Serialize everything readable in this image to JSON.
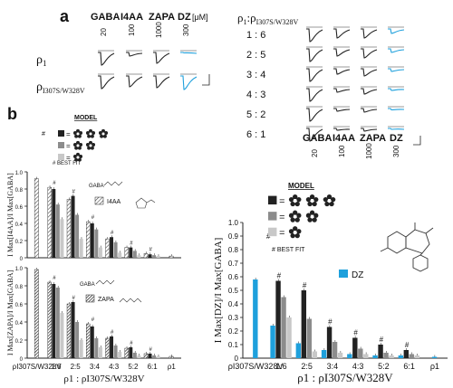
{
  "panel_labels": {
    "a": "a",
    "b": "b"
  },
  "panel_a": {
    "drug_header": [
      "GABA",
      "I4AA",
      "ZAPA",
      "DZ"
    ],
    "conc_row": [
      "20",
      "100",
      "1000",
      "300"
    ],
    "unit": "[μM]",
    "rho1_label": "ρ",
    "rho1_sub": "1",
    "mutant_label": "ρ",
    "mutant_sub": "I307S/W328V",
    "ratio_title_rho": "ρ",
    "ratio_title_sub1": "1",
    "ratio_title_colon": ":ρ",
    "ratio_title_sub2": "I307S/W328V",
    "ratio_drug_header": [
      "GABA",
      "I4AA",
      "ZAPA",
      "DZ"
    ],
    "ratio_conc_row": [
      "20",
      "100",
      "1000",
      "300"
    ],
    "ratios": [
      "1 : 6",
      "2 : 5",
      "3 : 4",
      "4 : 3",
      "5 : 2",
      "6 : 1"
    ]
  },
  "model_legend_left": {
    "title": "MODEL",
    "best_fit": "# BEST FIT",
    "hash": "#"
  },
  "model_legend_right": {
    "title": "MODEL",
    "best_fit": "# BEST FIT",
    "hash": "#"
  },
  "colors": {
    "black": "#222222",
    "gray": "#8c8c8c",
    "light": "#c8c8c8",
    "dz": "#1ea0dc",
    "hatch": "#555555"
  },
  "chart_data": [
    {
      "type": "bar",
      "title": "",
      "ylabel": "I Max[I4AA]/I Max[GABA]",
      "ylim": [
        0,
        1.0
      ],
      "yticks": [
        "0",
        "0.2",
        "0.4",
        "0.6",
        "0.8",
        "1.0"
      ],
      "legend": "I4AA",
      "legend_text": "GABA",
      "categories": [
        "ρI307S/W328V",
        "1:6",
        "2:5",
        "3:4",
        "4:3",
        "5:2",
        "6:1",
        "ρ1"
      ],
      "series": [
        {
          "name": "I4AA",
          "values": [
            0.92,
            0.82,
            0.68,
            0.42,
            0.22,
            0.12,
            0.05,
            0.02
          ]
        },
        {
          "values": [
            null,
            0.8,
            0.72,
            0.4,
            0.24,
            0.12,
            0.04,
            null
          ]
        },
        {
          "values": [
            null,
            0.62,
            0.5,
            0.33,
            0.18,
            0.08,
            0.03,
            null
          ]
        },
        {
          "values": [
            null,
            0.45,
            0.22,
            0.12,
            0.06,
            0.03,
            0.02,
            null
          ]
        }
      ],
      "best_fit_marks": [
        "1:6",
        "2:5",
        "3:4",
        "4:3",
        "5:2",
        "6:1"
      ]
    },
    {
      "type": "bar",
      "title": "",
      "ylabel": "I Max[ZAPA]/I Max[GABA]",
      "ylim": [
        0,
        1.0
      ],
      "yticks": [
        "0",
        "0.2",
        "0.4",
        "0.6",
        "0.8",
        "1.0"
      ],
      "legend": "ZAPA",
      "legend_text": "GABA",
      "categories": [
        "ρI307S/W328V",
        "1:6",
        "2:5",
        "3:4",
        "4:3",
        "5:2",
        "6:1",
        "ρ1"
      ],
      "series": [
        {
          "name": "ZAPA",
          "values": [
            0.98,
            0.84,
            0.6,
            0.38,
            0.22,
            0.11,
            0.05,
            0.02
          ]
        },
        {
          "values": [
            null,
            0.82,
            0.62,
            0.35,
            0.24,
            0.12,
            0.05,
            null
          ]
        },
        {
          "values": [
            null,
            0.78,
            0.4,
            0.22,
            0.14,
            0.06,
            0.03,
            null
          ]
        },
        {
          "values": [
            null,
            0.5,
            0.2,
            0.12,
            0.07,
            0.03,
            0.02,
            null
          ]
        }
      ],
      "xlabel": "ρ1 : ρI307S/W328V",
      "best_fit_marks": [
        "1:6",
        "2:5",
        "3:4",
        "4:3",
        "5:2",
        "6:1"
      ]
    },
    {
      "type": "bar",
      "title": "",
      "ylabel": "I Max[DZ]/I Max[GABA]",
      "ylim": [
        0,
        1.0
      ],
      "yticks": [
        "0",
        "0.1",
        "0.2",
        "0.3",
        "0.4",
        "0.5",
        "0.6",
        "0.7",
        "0.8",
        "0.9",
        "1.0"
      ],
      "legend": "DZ",
      "categories": [
        "ρI307S/W328V",
        "1:6",
        "2:5",
        "3:4",
        "4:3",
        "5:2",
        "6:1",
        "ρ1"
      ],
      "series": [
        {
          "name": "DZ",
          "values": [
            0.58,
            0.24,
            0.11,
            0.06,
            0.03,
            0.02,
            0.02,
            0.01
          ]
        },
        {
          "values": [
            null,
            0.57,
            0.5,
            0.23,
            0.15,
            0.1,
            0.06,
            null
          ]
        },
        {
          "values": [
            null,
            0.45,
            0.29,
            0.12,
            0.07,
            0.04,
            0.03,
            null
          ]
        },
        {
          "values": [
            null,
            0.3,
            0.05,
            0.04,
            0.03,
            0.02,
            0.02,
            null
          ]
        }
      ],
      "xlabel": "ρ1 : ρI307S/W328V",
      "best_fit_marks": [
        "1:6",
        "2:5",
        "3:4",
        "4:3",
        "5:2",
        "6:1"
      ]
    }
  ]
}
